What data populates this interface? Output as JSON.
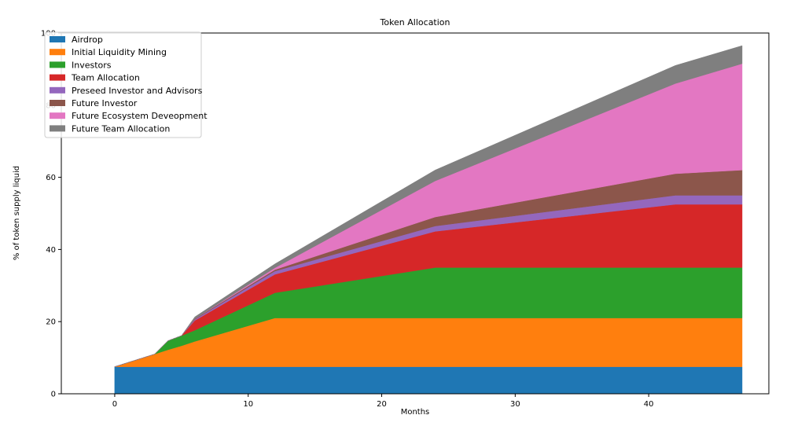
{
  "chart_data": {
    "type": "area",
    "title": "Token Allocation",
    "xlabel": "Months",
    "ylabel": "% of token supply liquid",
    "xlim": [
      -4,
      49
    ],
    "ylim": [
      0,
      100
    ],
    "xticks": [
      0,
      10,
      20,
      30,
      40
    ],
    "yticks": [
      0,
      20,
      40,
      60,
      80,
      100
    ],
    "legend_position": "upper-left",
    "grid": false,
    "x": [
      0,
      3,
      4,
      5,
      6,
      12,
      24,
      42,
      47
    ],
    "series": [
      {
        "name": "Airdrop",
        "color": "#1f77b4",
        "values": [
          7.5,
          7.5,
          7.5,
          7.5,
          7.5,
          7.5,
          7.5,
          7.5,
          7.5
        ]
      },
      {
        "name": "Initial Liquidity Mining",
        "color": "#ff7f0e",
        "values": [
          0,
          3.5,
          4.7,
          5.8,
          7.0,
          13.5,
          13.5,
          13.5,
          13.5
        ]
      },
      {
        "name": "Investors",
        "color": "#2ca02c",
        "values": [
          0,
          0,
          2.5,
          2.8,
          3.1,
          7.0,
          14.0,
          14.0,
          14.0
        ]
      },
      {
        "name": "Team Allocation",
        "color": "#d62728",
        "values": [
          0,
          0,
          0,
          0,
          2.7,
          5.1,
          10.0,
          17.5,
          17.5
        ]
      },
      {
        "name": "Preseed Investor and Advisors",
        "color": "#9467bd",
        "values": [
          0,
          0,
          0,
          0,
          0.3,
          0.9,
          1.5,
          2.5,
          2.5
        ]
      },
      {
        "name": "Future Investor",
        "color": "#8c564b",
        "values": [
          0,
          0,
          0,
          0,
          0.2,
          0.4,
          2.5,
          6.0,
          7.0
        ]
      },
      {
        "name": "Future Ecosystem Deveopment",
        "color": "#e377c2",
        "values": [
          0,
          0,
          0,
          0,
          0,
          0.5,
          10.0,
          25.0,
          29.5
        ]
      },
      {
        "name": "Future Team Allocation",
        "color": "#7f7f7f",
        "values": [
          0,
          0,
          0,
          0,
          0.5,
          1.1,
          3.0,
          5.0,
          5.0
        ]
      }
    ]
  }
}
